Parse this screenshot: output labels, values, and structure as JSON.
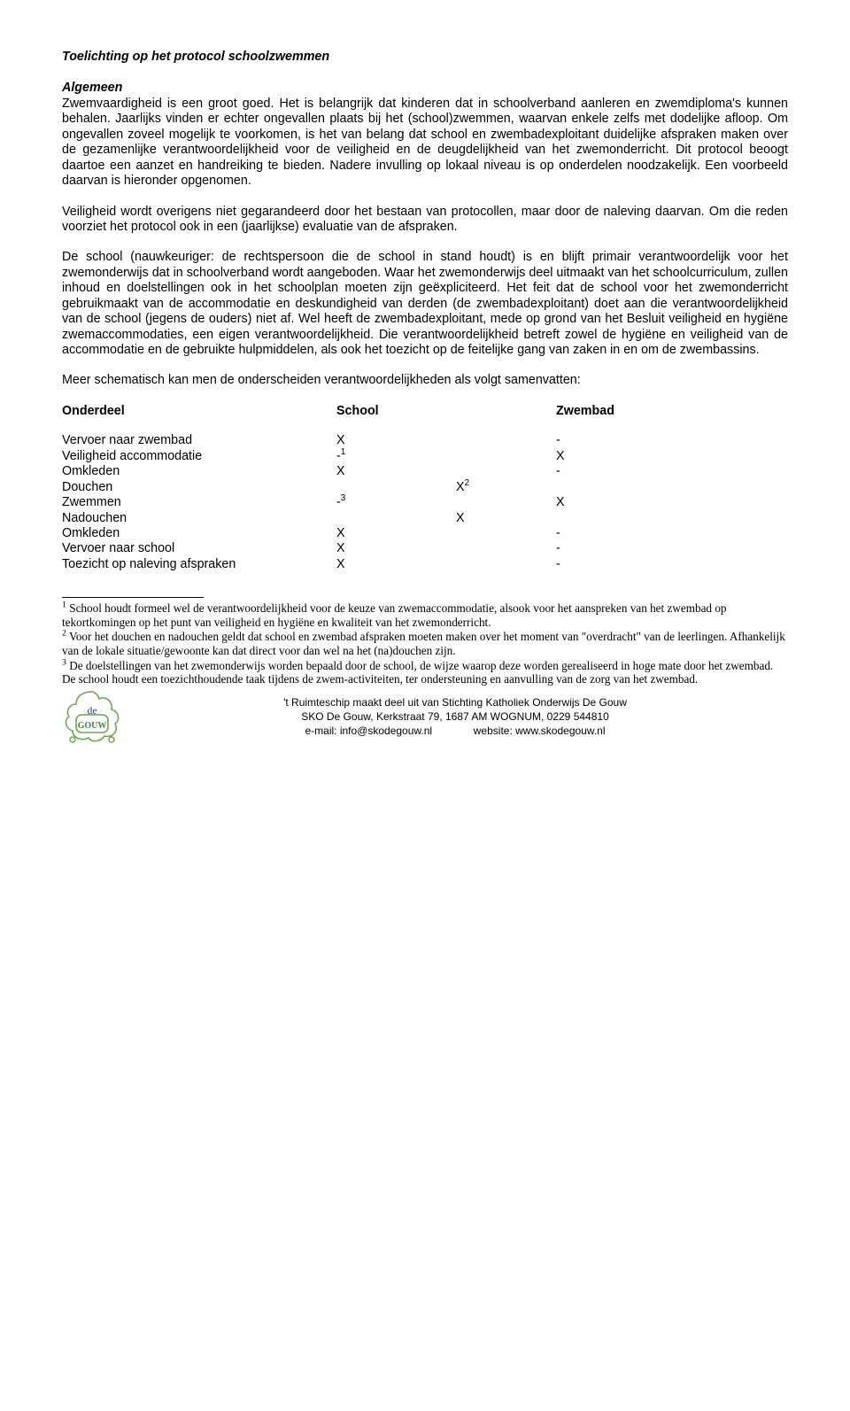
{
  "title": "Toelichting op het protocol schoolzwemmen",
  "sectionHeading": "Algemeen",
  "para1": "Zwemvaardigheid is een groot goed. Het is belangrijk dat kinderen dat in schoolverband aanleren en zwemdiploma's kunnen behalen. Jaarlijks vinden er echter ongevallen plaats bij het (school)zwemmen, waarvan enkele zelfs met dodelijke afloop. Om ongevallen zoveel mogelijk te voorkomen, is het van belang dat school en zwembadexploitant duidelijke afspraken maken over de gezamenlijke verantwoordelijkheid voor de veiligheid en de deugdelijkheid van het zwemonderricht. Dit protocol beoogt daartoe een aanzet en handreiking te bieden. Nadere invulling op lokaal niveau is op onderdelen noodzakelijk. Een voorbeeld daarvan is hieronder opgenomen.",
  "para2": "Veiligheid wordt overigens niet gegarandeerd door het bestaan van protocollen, maar door de naleving daarvan. Om die reden voorziet het protocol ook in een (jaarlijkse) evaluatie van de afspraken.",
  "para3": "De school (nauwkeuriger: de rechtspersoon die de school in stand houdt) is en blijft primair verantwoordelijk voor het zwemonderwijs dat in schoolverband wordt aangeboden. Waar het zwemonderwijs deel uitmaakt van het schoolcurriculum, zullen inhoud en doelstellingen ook in het schoolplan moeten zijn geëxpliciteerd. Het feit dat de school voor het zwemonderricht gebruikmaakt van de accommodatie en deskundigheid van derden (de zwembadexploitant) doet aan die verantwoordelijkheid van de school (jegens de ouders) niet af. Wel heeft de zwembadexploitant, mede op grond van het Besluit veiligheid en hygiëne zwemaccommodaties, een eigen verantwoordelijkheid. Die verantwoordelijkheid betreft zowel de hygiëne en veiligheid van de accommodatie en de gebruikte hulpmiddelen, als ook het toezicht op de feitelijke gang van zaken in en om de zwembassins.",
  "para4": "Meer schematisch kan men de onderscheiden verantwoordelijkheden als volgt samenvatten:",
  "table": {
    "headers": {
      "col1": "Onderdeel",
      "col2": "School",
      "col3": "Zwembad"
    },
    "rows": [
      {
        "label": "Vervoer naar zwembad",
        "school": "X",
        "zwembad": "-"
      },
      {
        "label": "Veiligheid accommodatie",
        "school": "-",
        "schoolSup": "1",
        "zwembad": "X"
      },
      {
        "label": "Omkleden",
        "school": "X",
        "zwembad": "-"
      },
      {
        "label": "Douchen",
        "school": "",
        "zwembad": "X",
        "zwembadSup": "2",
        "zwembadIndent": true
      },
      {
        "label": "Zwemmen",
        "school": "-",
        "schoolSup": "3",
        "zwembad": "X"
      },
      {
        "label": "Nadouchen",
        "school": "",
        "zwembad": "X",
        "zwembadIndent": true
      },
      {
        "label": "Omkleden",
        "school": "X",
        "zwembad": "-"
      },
      {
        "label": "Vervoer naar school",
        "school": "X",
        "zwembad": "-"
      },
      {
        "label": "Toezicht op naleving afspraken",
        "school": "X",
        "zwembad": "-"
      }
    ]
  },
  "footnotes": [
    {
      "num": "1",
      "text": " School houdt formeel wel de verantwoordelijkheid voor de keuze van zwemaccommodatie, alsook voor het aanspreken van het zwembad op tekortkomingen op het punt van veiligheid en hygiëne en kwaliteit van het zwemonderricht."
    },
    {
      "num": "2",
      "text": " Voor het douchen en nadouchen geldt dat school en zwembad afspraken moeten maken over het moment van \"overdracht\" van de leerlingen. Afhankelijk van de lokale situatie/gewoonte kan dat direct voor dan wel na het (na)douchen zijn."
    },
    {
      "num": "3",
      "text": " De doelstellingen van het zwemonderwijs worden bepaald door de school, de wijze waarop deze worden gerealiseerd in hoge mate door het zwembad. De school houdt een toezichthoudende taak tijdens de zwem-activiteiten, ter ondersteuning en aanvulling van de zorg van het zwembad."
    }
  ],
  "footer": {
    "line1": "'t Ruimteschip maakt deel uit van Stichting Katholiek Onderwijs De Gouw",
    "line2": "SKO De Gouw, Kerkstraat 79, 1687 AM WOGNUM, 0229 544810",
    "line3a": "e-mail: info@skodegouw.nl",
    "line3b": "website: www.skodegouw.nl",
    "logoTextTop": "de",
    "logoTextBottom": "GOUW"
  },
  "colors": {
    "text": "#000000",
    "logoOutline": "#6aa84f",
    "logoFill": "#ffffff",
    "logoTextBlue": "#1f4e9c",
    "logoTextGreen": "#3a8a3a"
  }
}
